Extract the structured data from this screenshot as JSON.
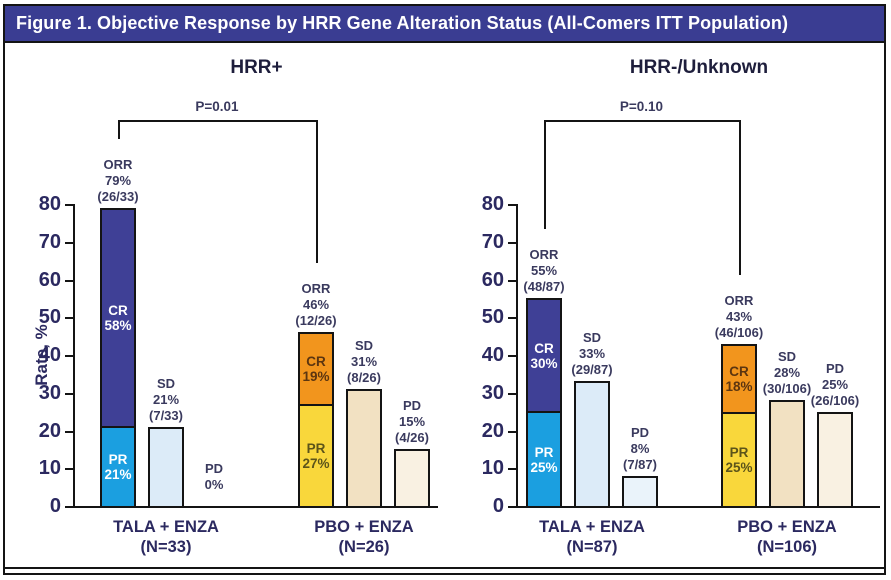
{
  "figure": {
    "title": "Figure 1. Objective Response by HRR Gene Alteration Status (All-Comers ITT Population)",
    "title_bar_color": "#3A3D92",
    "border_color": "#141414"
  },
  "chart_data": [
    {
      "type": "bar",
      "title": "HRR+",
      "p_value": "P=0.01",
      "ylabel": "Rate, %",
      "ylim": [
        0,
        80
      ],
      "ytick_step": 10,
      "grid": false,
      "groups": [
        {
          "label": [
            "TALA + ENZA",
            "(N=33)"
          ],
          "bars": [
            {
              "annotation": [
                "ORR",
                "79%",
                "(26/33)"
              ],
              "bracket_anchor": true,
              "segments": [
                {
                  "name": "PR",
                  "label": [
                    "PR",
                    "21%"
                  ],
                  "value": 21,
                  "color": "#1B9FE0",
                  "label_color": "#FFFFFF"
                },
                {
                  "name": "CR",
                  "label": [
                    "CR",
                    "58%"
                  ],
                  "value": 58,
                  "color": "#3F4096",
                  "label_color": "#FFFFFF"
                }
              ]
            },
            {
              "annotation": [
                "SD",
                "21%",
                "(7/33)"
              ],
              "segments": [
                {
                  "name": "SD",
                  "value": 21,
                  "color": "#DCEBF8"
                }
              ]
            },
            {
              "annotation": [
                "PD",
                "0%"
              ],
              "segments": [
                {
                  "name": "PD",
                  "value": 0,
                  "color": "#EAF3FA"
                }
              ]
            }
          ]
        },
        {
          "label": [
            "PBO + ENZA",
            "(N=26)"
          ],
          "bars": [
            {
              "annotation": [
                "ORR",
                "46%",
                "(12/26)"
              ],
              "bracket_anchor": true,
              "segments": [
                {
                  "name": "PR",
                  "label": [
                    "PR",
                    "27%"
                  ],
                  "value": 27,
                  "color": "#F9D73B",
                  "label_color": "#5C541A"
                },
                {
                  "name": "CR",
                  "label": [
                    "CR",
                    "19%"
                  ],
                  "value": 19,
                  "color": "#F2951D",
                  "label_color": "#5C3510"
                }
              ]
            },
            {
              "annotation": [
                "SD",
                "31%",
                "(8/26)"
              ],
              "segments": [
                {
                  "name": "SD",
                  "value": 31,
                  "color": "#F2E1C2"
                }
              ]
            },
            {
              "annotation": [
                "PD",
                "15%",
                "(4/26)"
              ],
              "segments": [
                {
                  "name": "PD",
                  "value": 15,
                  "color": "#F9F1E2"
                }
              ]
            }
          ]
        }
      ]
    },
    {
      "type": "bar",
      "title": "HRR-/Unknown",
      "p_value": "P=0.10",
      "ylabel": null,
      "ylim": [
        0,
        80
      ],
      "ytick_step": 10,
      "grid": false,
      "groups": [
        {
          "label": [
            "TALA + ENZA",
            "(N=87)"
          ],
          "bars": [
            {
              "annotation": [
                "ORR",
                "55%",
                "(48/87)"
              ],
              "bracket_anchor": true,
              "segments": [
                {
                  "name": "PR",
                  "label": [
                    "PR",
                    "25%"
                  ],
                  "value": 25,
                  "color": "#1B9FE0",
                  "label_color": "#FFFFFF"
                },
                {
                  "name": "CR",
                  "label": [
                    "CR",
                    "30%"
                  ],
                  "value": 30,
                  "color": "#3F4096",
                  "label_color": "#FFFFFF"
                }
              ]
            },
            {
              "annotation": [
                "SD",
                "33%",
                "(29/87)"
              ],
              "segments": [
                {
                  "name": "SD",
                  "value": 33,
                  "color": "#DCEBF8"
                }
              ]
            },
            {
              "annotation": [
                "PD",
                "8%",
                "(7/87)"
              ],
              "segments": [
                {
                  "name": "PD",
                  "value": 8,
                  "color": "#EAF3FA"
                }
              ]
            }
          ]
        },
        {
          "label": [
            "PBO + ENZA",
            "(N=106)"
          ],
          "bars": [
            {
              "annotation": [
                "ORR",
                "43%",
                "(46/106)"
              ],
              "bracket_anchor": true,
              "segments": [
                {
                  "name": "PR",
                  "label": [
                    "PR",
                    "25%"
                  ],
                  "value": 25,
                  "color": "#F9D73B",
                  "label_color": "#5C541A"
                },
                {
                  "name": "CR",
                  "label": [
                    "CR",
                    "18%"
                  ],
                  "value": 18,
                  "color": "#F2951D",
                  "label_color": "#5C3510"
                }
              ]
            },
            {
              "annotation": [
                "SD",
                "28%",
                "(30/106)"
              ],
              "segments": [
                {
                  "name": "SD",
                  "value": 28,
                  "color": "#F2E1C2"
                }
              ]
            },
            {
              "annotation": [
                "PD",
                "25%",
                "(26/106)"
              ],
              "segments": [
                {
                  "name": "PD",
                  "value": 25,
                  "color": "#F9F1E2"
                }
              ]
            }
          ]
        }
      ]
    }
  ]
}
